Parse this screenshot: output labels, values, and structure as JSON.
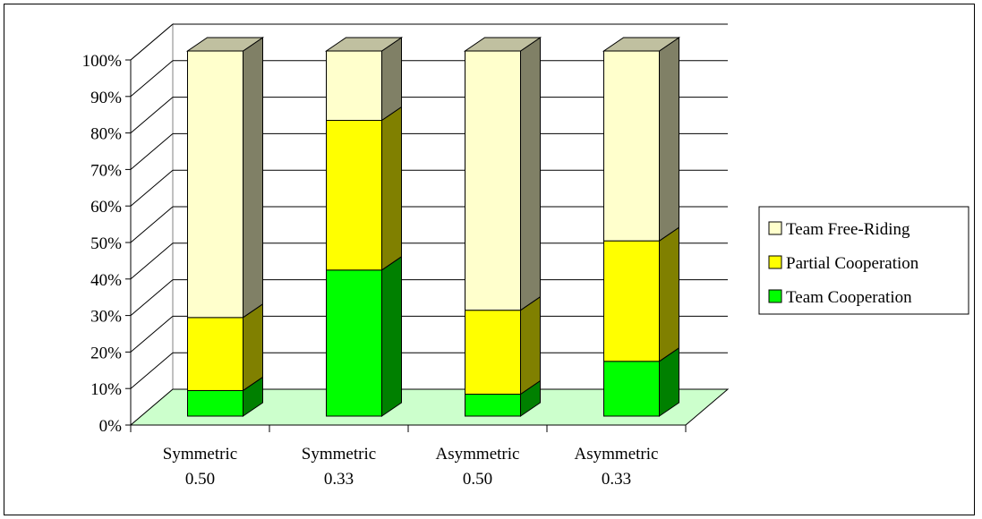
{
  "chart_data": {
    "type": "bar",
    "stacked": true,
    "percent_stacked": true,
    "three_d": true,
    "title": "",
    "xlabel": "",
    "ylabel": "",
    "ylim": [
      0,
      100
    ],
    "yticks": [
      "0%",
      "10%",
      "20%",
      "30%",
      "40%",
      "50%",
      "60%",
      "70%",
      "80%",
      "90%",
      "100%"
    ],
    "categories": [
      [
        "Symmetric",
        "0.50"
      ],
      [
        "Symmetric",
        "0.33"
      ],
      [
        "Asymmetric",
        "0.50"
      ],
      [
        "Asymmetric",
        "0.33"
      ]
    ],
    "series": [
      {
        "name": "Team Cooperation",
        "values": [
          7,
          40,
          6,
          15
        ],
        "color": "#00ff00",
        "dark": "#008000"
      },
      {
        "name": "Partial Cooperation",
        "values": [
          20,
          41,
          23,
          33
        ],
        "color": "#ffff00",
        "dark": "#808000"
      },
      {
        "name": "Team Free-Riding",
        "values": [
          73,
          19,
          71,
          52
        ],
        "color": "#ffffcc",
        "dark": "#808066"
      }
    ],
    "legend_order": [
      "Team Free-Riding",
      "Partial Cooperation",
      "Team Cooperation"
    ],
    "legend_position": "right",
    "grid": true,
    "floor_color": "#ccffcc",
    "bar_top_color": "#c0c0a0"
  }
}
